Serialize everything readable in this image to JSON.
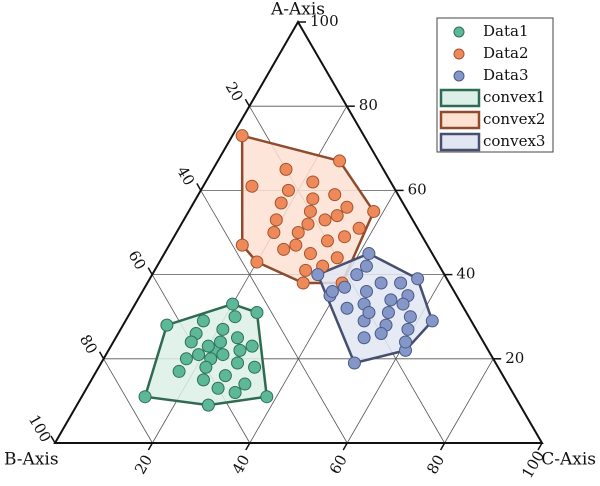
{
  "chart_data": {
    "type": "ternary",
    "a_label": "A-Axis",
    "b_label": "B-Axis",
    "c_label": "C-Axis",
    "aticks": [
      20,
      40,
      60,
      80,
      100
    ],
    "bticks": [
      20,
      40,
      60,
      80,
      100
    ],
    "cticks": [
      20,
      40,
      60,
      80,
      100
    ],
    "grid": true,
    "legend": "upper right",
    "series": [
      {
        "name": "Data1",
        "color": "#5cb898",
        "edge": "#2f6f58",
        "a": [
          11,
          28,
          33,
          31,
          11,
          9,
          22,
          20,
          24,
          18,
          25,
          15,
          27,
          21,
          19,
          23,
          16,
          13,
          26,
          17,
          14,
          22,
          29,
          20,
          12,
          24,
          18,
          30,
          23,
          21
        ],
        "b": [
          76,
          63,
          47,
          43,
          51,
          64,
          56,
          58,
          54,
          60,
          50,
          62,
          52,
          55,
          53,
          48,
          57,
          60,
          58,
          66,
          54,
          51,
          55,
          63,
          57,
          60,
          50,
          48,
          57,
          60
        ]
      },
      {
        "name": "Data2",
        "color": "#ee8a5a",
        "edge": "#a4532e",
        "a": [
          73,
          67,
          55,
          38,
          38,
          43,
          47,
          61,
          55,
          52,
          50,
          58,
          54,
          48,
          45,
          60,
          57,
          50,
          46,
          53,
          62,
          49,
          44,
          42,
          56,
          51,
          59,
          47,
          65,
          41,
          53
        ],
        "b": [
          25,
          8,
          7,
          22,
          30,
          37,
          38,
          29,
          20,
          22,
          25,
          18,
          15,
          20,
          25,
          22,
          25,
          30,
          30,
          28,
          16,
          16,
          20,
          24,
          12,
          12,
          13,
          27,
          20,
          28,
          18
        ]
      },
      {
        "name": "Data3",
        "color": "#8597c8",
        "edge": "#4a5a85",
        "a": [
          40,
          45,
          39,
          29,
          22,
          19,
          35,
          36,
          33,
          38,
          34,
          31,
          37,
          32,
          30,
          28,
          26,
          35,
          40,
          42,
          25,
          29,
          33,
          24,
          38,
          36,
          31,
          27
        ],
        "b": [
          26,
          13,
          6,
          8,
          17,
          29,
          26,
          18,
          20,
          14,
          14,
          16,
          22,
          24,
          12,
          18,
          20,
          10,
          18,
          15,
          24,
          22,
          12,
          16,
          10,
          25,
          20,
          14
        ]
      }
    ],
    "hulls": [
      {
        "name": "convex1",
        "fill": "#dcf0e8",
        "stroke": "#2e6b52"
      },
      {
        "name": "convex2",
        "fill": "#fde2d2",
        "stroke": "#8f4b2c"
      },
      {
        "name": "convex3",
        "fill": "#e2e6f3",
        "stroke": "#474f70"
      }
    ]
  }
}
